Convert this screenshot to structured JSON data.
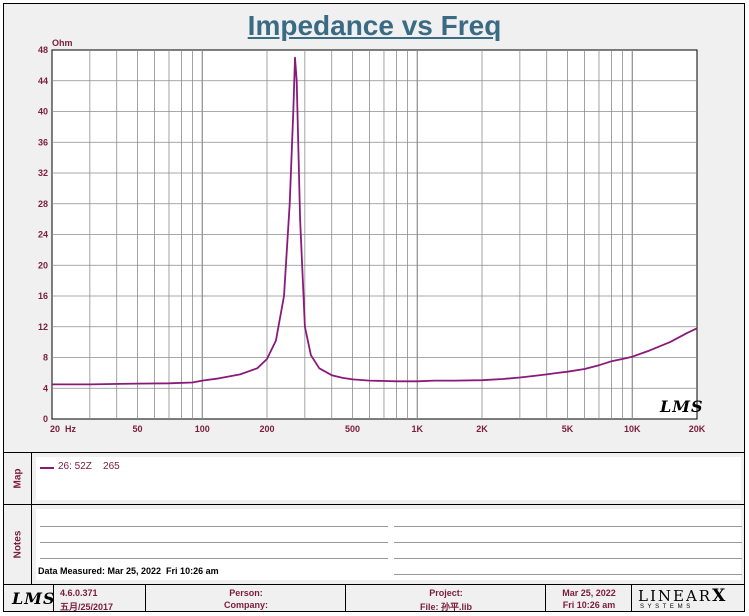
{
  "chart_data": {
    "type": "line",
    "title": "Impedance vs Freq",
    "ylabel": "Ohm",
    "xscale": "log",
    "xlim": [
      20,
      20000
    ],
    "ylim": [
      0,
      48
    ],
    "grid": true,
    "y_ticks": [
      "0",
      "4",
      "8",
      "12",
      "16",
      "20",
      "24",
      "28",
      "32",
      "36",
      "40",
      "44",
      "48"
    ],
    "x_ticks": [
      {
        "value": 20,
        "label": "20  Hz"
      },
      {
        "value": 50,
        "label": "50"
      },
      {
        "value": 100,
        "label": "100"
      },
      {
        "value": 200,
        "label": "200"
      },
      {
        "value": 500,
        "label": "500"
      },
      {
        "value": 1000,
        "label": "1K"
      },
      {
        "value": 2000,
        "label": "2K"
      },
      {
        "value": 5000,
        "label": "5K"
      },
      {
        "value": 10000,
        "label": "10K"
      },
      {
        "value": 20000,
        "label": "20K"
      }
    ],
    "series": [
      {
        "name": "26: 52Z    265",
        "color": "#8a1a7a",
        "x": [
          20,
          30,
          50,
          70,
          90,
          100,
          120,
          150,
          180,
          200,
          220,
          240,
          255,
          265,
          270,
          275,
          285,
          300,
          320,
          350,
          400,
          450,
          500,
          600,
          800,
          1000,
          1200,
          1500,
          2000,
          2500,
          3000,
          3500,
          4000,
          4500,
          5000,
          6000,
          7000,
          8000,
          9000,
          10000,
          12000,
          15000,
          18000,
          20000
        ],
        "y": [
          4.5,
          4.5,
          4.6,
          4.65,
          4.75,
          5.0,
          5.3,
          5.8,
          6.6,
          7.8,
          10.2,
          16.0,
          28.0,
          40.0,
          47.0,
          44.0,
          26.0,
          12.0,
          8.3,
          6.6,
          5.7,
          5.35,
          5.15,
          5.0,
          4.9,
          4.9,
          5.0,
          5.0,
          5.05,
          5.2,
          5.4,
          5.6,
          5.8,
          6.0,
          6.15,
          6.5,
          7.0,
          7.5,
          7.8,
          8.1,
          8.9,
          10.0,
          11.2,
          11.8
        ]
      }
    ],
    "watermark": "LMS"
  },
  "notes": {
    "measured": "Data Measured: Mar 25, 2022  Fri 10:26 am"
  },
  "panels": {
    "map_label": "Map",
    "notes_label": "Notes"
  },
  "footer": {
    "logo": "LMS",
    "version": "4.6.0.371",
    "build_date": "五月/25/2017",
    "person_label": "Person:",
    "company_label": "Company:",
    "project_label": "Project:",
    "file_label": "File: 孙平.lib",
    "date": "Mar 25, 2022",
    "time": "Fri 10:26 am",
    "brand_top": "LINEAR",
    "brand_x": "X",
    "brand_bottom": "S Y S T E M S"
  },
  "colors": {
    "curve": "#8a1a7a",
    "axis_text": "#7a1c3c",
    "title": "#3a6b85"
  }
}
